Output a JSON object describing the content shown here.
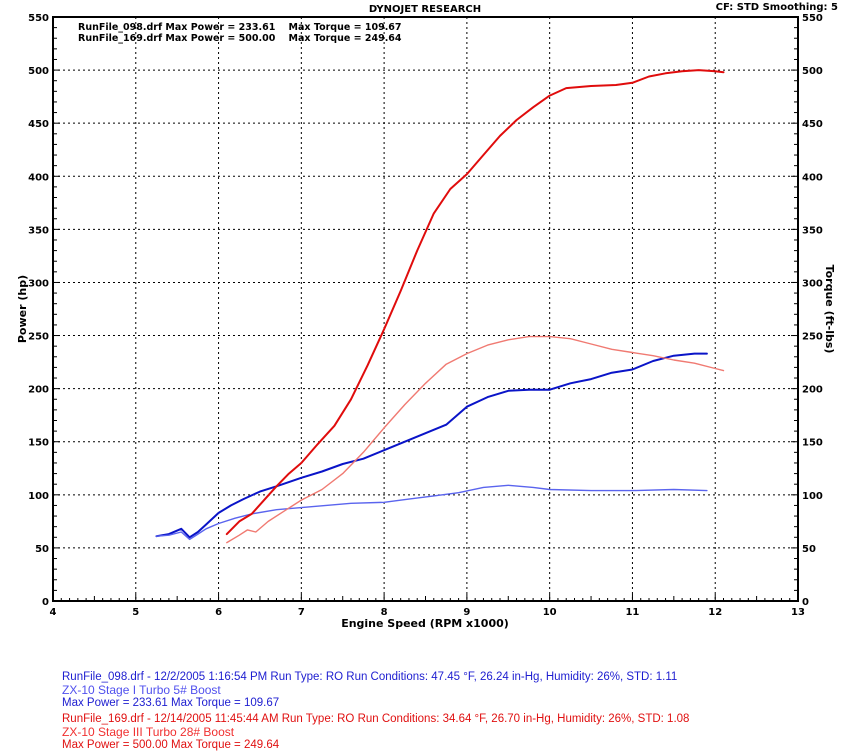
{
  "header": {
    "title": "DYNOJET RESEARCH",
    "cf_label": "CF: STD  Smoothing: 5"
  },
  "legend": {
    "lines": [
      "RunFile_098.drf Max Power = 233.61    Max Torque = 109.67",
      "RunFile_169.drf Max Power = 500.00    Max Torque = 249.64"
    ]
  },
  "run_info": [
    {
      "color": "#1d1dd0",
      "line1": "RunFile_098.drf - 12/2/2005 1:16:54 PM  Run Type: RO  Run Conditions: 47.45 °F, 26.24 in-Hg,  Humidity:  26%, STD: 1.11",
      "line2": "ZX-10 Stage I Turbo 5# Boost",
      "line3": "Max Power = 233.61  Max Torque = 109.67"
    },
    {
      "color": "#e01010",
      "line1": "RunFile_169.drf - 12/14/2005 11:45:44 AM  Run Type: RO  Run Conditions: 34.64 °F, 26.70 in-Hg,  Humidity:  26%,  STD: 1.08",
      "line2": "ZX-10 Stage III Turbo 28# Boost",
      "line3": "Max Power = 500.00  Max Torque = 249.64"
    }
  ],
  "colors": {
    "run098_power": "#0a14c8",
    "run098_torque": "#5a64ee",
    "run169_power": "#e00c0c",
    "run169_torque": "#f07a72"
  },
  "chart_data": {
    "type": "line",
    "title": "DYNOJET RESEARCH",
    "xlabel": "Engine Speed (RPM x1000)",
    "ylabel": "Power (hp)",
    "y2label": "Torque (ft-lbs)",
    "xlim": [
      4,
      13
    ],
    "ylim": [
      0,
      550
    ],
    "y2lim": [
      0,
      550
    ],
    "x_ticks": [
      4,
      5,
      6,
      7,
      8,
      9,
      10,
      11,
      12,
      13
    ],
    "y_ticks": [
      0,
      50,
      100,
      150,
      200,
      250,
      300,
      350,
      400,
      450,
      500,
      550
    ],
    "grid": true,
    "legend_position": "top-left",
    "series": [
      {
        "name": "RunFile_098.drf Power",
        "axis": "left",
        "x": [
          5.25,
          5.4,
          5.55,
          5.65,
          5.75,
          5.85,
          6.0,
          6.15,
          6.3,
          6.5,
          6.7,
          7.0,
          7.25,
          7.5,
          7.75,
          8.0,
          8.25,
          8.5,
          8.75,
          9.0,
          9.25,
          9.5,
          9.75,
          10.0,
          10.25,
          10.5,
          10.75,
          11.0,
          11.25,
          11.5,
          11.75,
          11.9
        ],
        "y": [
          61,
          63,
          68,
          60,
          65,
          72,
          83,
          90,
          96,
          103,
          108,
          116,
          122,
          129,
          134,
          142,
          150,
          158,
          166,
          183,
          192,
          198,
          199,
          199,
          205,
          209,
          215,
          218,
          226,
          231,
          233,
          233
        ]
      },
      {
        "name": "RunFile_098.drf Torque",
        "axis": "right",
        "x": [
          5.25,
          5.4,
          5.55,
          5.65,
          5.75,
          5.85,
          6.0,
          6.2,
          6.4,
          6.7,
          7.0,
          7.3,
          7.6,
          8.0,
          8.3,
          8.6,
          8.9,
          9.2,
          9.5,
          9.8,
          10.0,
          10.5,
          11.0,
          11.5,
          11.9
        ],
        "y": [
          61,
          62,
          65,
          58,
          63,
          68,
          73,
          78,
          82,
          86,
          88,
          90,
          92,
          93,
          96,
          99,
          102,
          107,
          109,
          107,
          105,
          104,
          104,
          105,
          104
        ]
      },
      {
        "name": "RunFile_169.drf Power",
        "axis": "left",
        "x": [
          6.1,
          6.25,
          6.4,
          6.55,
          6.7,
          6.85,
          7.0,
          7.2,
          7.4,
          7.6,
          7.8,
          8.0,
          8.2,
          8.4,
          8.6,
          8.8,
          9.0,
          9.2,
          9.4,
          9.6,
          9.8,
          10.0,
          10.2,
          10.5,
          10.8,
          11.0,
          11.2,
          11.4,
          11.6,
          11.8,
          12.0,
          12.1
        ],
        "y": [
          63,
          75,
          82,
          95,
          108,
          120,
          130,
          148,
          165,
          190,
          222,
          256,
          292,
          330,
          365,
          388,
          402,
          420,
          438,
          453,
          465,
          476,
          483,
          485,
          486,
          488,
          494,
          497,
          499,
          500,
          499,
          498
        ]
      },
      {
        "name": "RunFile_169.drf Torque",
        "axis": "right",
        "x": [
          6.1,
          6.25,
          6.35,
          6.45,
          6.6,
          6.8,
          7.0,
          7.25,
          7.5,
          7.75,
          8.0,
          8.25,
          8.5,
          8.75,
          9.0,
          9.25,
          9.5,
          9.75,
          10.0,
          10.25,
          10.5,
          10.75,
          11.0,
          11.25,
          11.5,
          11.75,
          12.0,
          12.1
        ],
        "y": [
          55,
          62,
          67,
          65,
          75,
          85,
          95,
          105,
          120,
          140,
          163,
          185,
          205,
          223,
          233,
          241,
          246,
          249,
          249,
          247,
          242,
          237,
          234,
          231,
          227,
          224,
          219,
          217
        ]
      }
    ]
  }
}
